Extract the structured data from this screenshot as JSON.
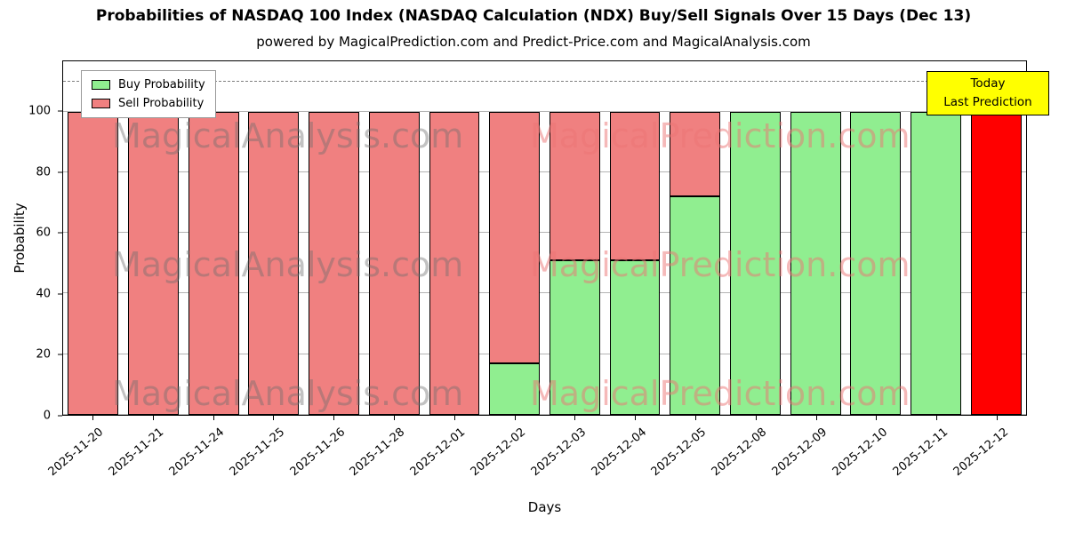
{
  "title": "Probabilities of NASDAQ 100 Index (NASDAQ Calculation (NDX) Buy/Sell Signals Over 15 Days (Dec 13)",
  "subtitle": "powered by MagicalPrediction.com and Predict-Price.com and MagicalAnalysis.com",
  "legend": {
    "buy_label": "Buy Probability",
    "sell_label": "Sell Probability"
  },
  "annotation": {
    "line1": "Today",
    "line2": "Last Prediction"
  },
  "watermarks": {
    "left": "MagicalAnalysis.com",
    "right": "MagicalPrediction.com"
  },
  "axes": {
    "xlabel": "Days",
    "ylabel": "Probability",
    "yticks": [
      0,
      20,
      40,
      60,
      80,
      100
    ]
  },
  "colors": {
    "buy": "#90EE90",
    "sell": "#F08080",
    "today": "#FF0000",
    "annotation_bg": "#FFFF00",
    "grid": "#b4b4b4"
  },
  "chart_data": {
    "type": "bar",
    "stacked": true,
    "title": "Probabilities of NASDAQ 100 Index (NASDAQ Calculation (NDX) Buy/Sell Signals Over 15 Days (Dec 13)",
    "xlabel": "Days",
    "ylabel": "Probability",
    "ylim": [
      0,
      116.6
    ],
    "dashed_line_y": 110,
    "grid": true,
    "legend_position": "upper left",
    "categories": [
      "2025-11-20",
      "2025-11-21",
      "2025-11-24",
      "2025-11-25",
      "2025-11-26",
      "2025-11-28",
      "2025-12-01",
      "2025-12-02",
      "2025-12-03",
      "2025-12-04",
      "2025-12-05",
      "2025-12-08",
      "2025-12-09",
      "2025-12-10",
      "2025-12-11",
      "2025-12-12"
    ],
    "series": [
      {
        "name": "Buy Probability",
        "color": "#90EE90",
        "values": [
          0,
          0,
          0,
          0,
          0,
          0,
          0,
          17,
          51,
          51,
          72,
          100,
          100,
          100,
          100,
          0
        ]
      },
      {
        "name": "Sell Probability",
        "color": "#F08080",
        "values": [
          100,
          100,
          100,
          100,
          100,
          100,
          100,
          83,
          49,
          49,
          28,
          0,
          0,
          0,
          0,
          0
        ]
      },
      {
        "name": "Today Last Prediction",
        "color": "#FF0000",
        "values": [
          0,
          0,
          0,
          0,
          0,
          0,
          0,
          0,
          0,
          0,
          0,
          0,
          0,
          0,
          0,
          100
        ]
      }
    ]
  }
}
